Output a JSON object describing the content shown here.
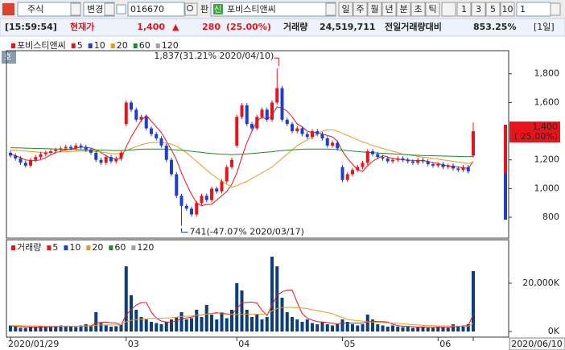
{
  "toolbar": {
    "market": "주식",
    "change": "변경",
    "code": "016670",
    "pan": "판",
    "badge": "신",
    "name": "포비스티앤씨",
    "periods": [
      "일",
      "주",
      "월",
      "년",
      "분",
      "초",
      "틱"
    ],
    "numbers": [
      "1",
      "3",
      "5",
      "10"
    ],
    "count": "1"
  },
  "quote": {
    "time": "[15:59:54]",
    "label": "현재가",
    "price": "1,400",
    "arrow": "▲",
    "change": "280",
    "rate": "(25.00%)",
    "volume_label": "거래량",
    "volume": "24,519,711",
    "ratio_label": "전일거래량대비",
    "ratio": "853.25%",
    "period": "[1일]"
  },
  "icon": "호",
  "chart_data": [
    {
      "type": "candlestick",
      "title": "포비스티앤씨",
      "up_color": "#e8141b",
      "down_color": "#1c3fd0",
      "categories": [
        "2020/01/29",
        null,
        null,
        null,
        null,
        null,
        null,
        null,
        null,
        null,
        null,
        null,
        null,
        null,
        null,
        null,
        null,
        null,
        null,
        null,
        null,
        null,
        null,
        "03",
        null,
        null,
        null,
        null,
        null,
        null,
        null,
        null,
        null,
        null,
        null,
        null,
        null,
        null,
        null,
        null,
        null,
        null,
        null,
        null,
        null,
        "04",
        null,
        null,
        null,
        null,
        null,
        null,
        null,
        null,
        null,
        null,
        null,
        null,
        null,
        null,
        null,
        null,
        null,
        null,
        null,
        null,
        "05",
        null,
        null,
        null,
        null,
        null,
        null,
        null,
        null,
        null,
        null,
        null,
        null,
        null,
        null,
        null,
        null,
        null,
        null,
        "06",
        null,
        null,
        null,
        null,
        null,
        null,
        "2020/06/10"
      ],
      "open": [
        1250,
        1230,
        1210,
        1180,
        1160,
        1200,
        1220,
        1240,
        1250,
        1260,
        1270,
        1280,
        1290,
        1280,
        1300,
        1290,
        1270,
        1250,
        1200,
        1180,
        1220,
        1190,
        1210,
        1450,
        1600,
        1550,
        1480,
        1500,
        1420,
        1380,
        1350,
        1300,
        1200,
        1100,
        950,
        880,
        860,
        820,
        900,
        950,
        920,
        1000,
        980,
        1050,
        1150,
        1300,
        1500,
        1580,
        1450,
        1420,
        1500,
        1550,
        1480,
        1600,
        1700,
        1480,
        1450,
        1400,
        1420,
        1380,
        1360,
        1400,
        1380,
        1350,
        1300,
        1320,
        1150,
        1060,
        1100,
        1130,
        1150,
        1180,
        1260,
        1240,
        1220,
        1210,
        1190,
        1200,
        1210,
        1200,
        1190,
        1180,
        1200,
        1190,
        1170,
        1160,
        1170,
        1150,
        1160,
        1140,
        1130,
        1150,
        1230
      ],
      "high": [
        1265,
        1245,
        1225,
        1195,
        1215,
        1235,
        1255,
        1265,
        1275,
        1285,
        1295,
        1305,
        1305,
        1315,
        1315,
        1305,
        1285,
        1265,
        1215,
        1235,
        1235,
        1225,
        1265,
        1615,
        1615,
        1565,
        1515,
        1515,
        1435,
        1395,
        1365,
        1315,
        1215,
        1115,
        965,
        895,
        875,
        915,
        965,
        965,
        1015,
        1015,
        1065,
        1165,
        1215,
        1515,
        1595,
        1595,
        1465,
        1515,
        1565,
        1565,
        1615,
        1837,
        1715,
        1495,
        1465,
        1435,
        1435,
        1395,
        1415,
        1415,
        1395,
        1365,
        1335,
        1335,
        1165,
        1115,
        1145,
        1165,
        1195,
        1275,
        1275,
        1255,
        1235,
        1225,
        1215,
        1225,
        1225,
        1215,
        1205,
        1215,
        1215,
        1205,
        1185,
        1185,
        1185,
        1175,
        1175,
        1155,
        1165,
        1165,
        1460
      ],
      "low": [
        1215,
        1195,
        1165,
        1145,
        1145,
        1185,
        1205,
        1225,
        1235,
        1245,
        1255,
        1265,
        1265,
        1265,
        1275,
        1255,
        1235,
        1185,
        1165,
        1165,
        1175,
        1175,
        1195,
        1435,
        1535,
        1465,
        1465,
        1405,
        1365,
        1335,
        1285,
        1185,
        1085,
        935,
        741,
        845,
        805,
        805,
        885,
        905,
        905,
        965,
        965,
        1035,
        1135,
        1285,
        1485,
        1435,
        1405,
        1405,
        1485,
        1465,
        1465,
        1585,
        1465,
        1435,
        1385,
        1385,
        1365,
        1345,
        1345,
        1365,
        1335,
        1285,
        1285,
        1265,
        1045,
        1045,
        1085,
        1115,
        1135,
        1165,
        1225,
        1205,
        1195,
        1175,
        1175,
        1185,
        1185,
        1175,
        1165,
        1165,
        1175,
        1155,
        1145,
        1145,
        1135,
        1135,
        1125,
        1115,
        1115,
        1105,
        1215
      ],
      "close": [
        1230,
        1210,
        1180,
        1160,
        1200,
        1220,
        1240,
        1250,
        1260,
        1270,
        1280,
        1290,
        1280,
        1300,
        1290,
        1270,
        1250,
        1200,
        1180,
        1220,
        1190,
        1210,
        1250,
        1600,
        1550,
        1480,
        1500,
        1420,
        1380,
        1350,
        1300,
        1200,
        1100,
        950,
        880,
        860,
        820,
        900,
        950,
        920,
        1000,
        980,
        1050,
        1150,
        1200,
        1500,
        1580,
        1450,
        1420,
        1500,
        1550,
        1480,
        1600,
        1700,
        1480,
        1450,
        1400,
        1420,
        1380,
        1360,
        1400,
        1380,
        1350,
        1300,
        1320,
        1280,
        1060,
        1100,
        1130,
        1150,
        1180,
        1260,
        1240,
        1220,
        1210,
        1190,
        1200,
        1210,
        1200,
        1190,
        1180,
        1200,
        1190,
        1170,
        1160,
        1170,
        1150,
        1160,
        1140,
        1130,
        1150,
        1120,
        1400
      ],
      "ma": [
        {
          "color": "#e8141b",
          "values": [
            1240,
            1230,
            1215,
            1200,
            1195,
            1195,
            1200,
            1215,
            1235,
            1250,
            1260,
            1270,
            1275,
            1282,
            1288,
            1288,
            1282,
            1270,
            1250,
            1230,
            1210,
            1205,
            1210,
            1290,
            1360,
            1420,
            1475,
            1510,
            1470,
            1430,
            1390,
            1330,
            1270,
            1200,
            1110,
            1030,
            960,
            900,
            880,
            890,
            890,
            920,
            950,
            980,
            1030,
            1110,
            1220,
            1320,
            1400,
            1470,
            1500,
            1480,
            1510,
            1570,
            1560,
            1540,
            1500,
            1450,
            1430,
            1400,
            1390,
            1390,
            1380,
            1370,
            1360,
            1330,
            1260,
            1210,
            1170,
            1130,
            1120,
            1160,
            1190,
            1210,
            1230,
            1220,
            1210,
            1205,
            1200,
            1200,
            1195,
            1195,
            1195,
            1190,
            1180,
            1175,
            1165,
            1160,
            1155,
            1150,
            1145,
            1140,
            1190
          ]
        },
        {
          "color": "#e89a1e",
          "values": [
            1270,
            1268,
            1265,
            1262,
            1258,
            1255,
            1253,
            1252,
            1252,
            1253,
            1255,
            1257,
            1258,
            1260,
            1262,
            1262,
            1260,
            1258,
            1255,
            1250,
            1245,
            1243,
            1245,
            1265,
            1280,
            1292,
            1305,
            1315,
            1320,
            1322,
            1322,
            1318,
            1310,
            1295,
            1275,
            1250,
            1220,
            1190,
            1160,
            1130,
            1100,
            1075,
            1050,
            1030,
            1010,
            1020,
            1035,
            1050,
            1070,
            1090,
            1110,
            1130,
            1150,
            1180,
            1210,
            1240,
            1270,
            1300,
            1320,
            1340,
            1360,
            1380,
            1400,
            1410,
            1410,
            1400,
            1385,
            1370,
            1355,
            1340,
            1325,
            1315,
            1300,
            1290,
            1280,
            1270,
            1260,
            1250,
            1240,
            1235,
            1230,
            1225,
            1220,
            1215,
            1210,
            1205,
            1200,
            1195,
            1190,
            1185,
            1180,
            1175,
            1185
          ]
        },
        {
          "color": "#1e8a2e",
          "values": [
            1285,
            1284,
            1283,
            1282,
            1281,
            1280,
            1279,
            1278,
            1277,
            1276,
            1275,
            1274,
            1273,
            1272,
            1271,
            1270,
            1270,
            1269,
            1268,
            1267,
            1266,
            1265,
            1265,
            1268,
            1270,
            1272,
            1274,
            1275,
            1276,
            1276,
            1275,
            1274,
            1272,
            1270,
            1267,
            1264,
            1260,
            1256,
            1252,
            1248,
            1245,
            1242,
            1240,
            1238,
            1237,
            1238,
            1240,
            1242,
            1245,
            1248,
            1251,
            1254,
            1257,
            1261,
            1265,
            1268,
            1270,
            1272,
            1274,
            1275,
            1276,
            1276,
            1276,
            1275,
            1274,
            1272,
            1268,
            1265,
            1262,
            1258,
            1255,
            1252,
            1250,
            1248,
            1246,
            1244,
            1242,
            1240,
            1238,
            1236,
            1234,
            1232,
            1231,
            1230,
            1229,
            1228,
            1227,
            1226,
            1225,
            1224,
            1223,
            1222,
            1226
          ]
        }
      ],
      "legend": [
        {
          "label": "5",
          "color": "#e8141b"
        },
        {
          "label": "10",
          "color": "#1c3fd0"
        },
        {
          "label": "20",
          "color": "#e89a1e"
        },
        {
          "label": "60",
          "color": "#1e8a2e"
        },
        {
          "label": "120",
          "color": "#a0a0a0"
        }
      ],
      "high_label": "1,837(31.21% 2020/04/10)",
      "low_label": "741(-47.07% 2020/03/17)",
      "price_box": [
        "1,400",
        "( 25.00%)"
      ],
      "ylim": [
        660,
        1950
      ],
      "yticks": [
        800,
        {
          "value": 1000,
          "label": "1,000"
        },
        {
          "value": 1200,
          "label": "1,200"
        },
        {
          "value": 1600,
          "label": "1,600"
        },
        {
          "value": 1800,
          "label": "1,800"
        }
      ]
    },
    {
      "type": "bar",
      "title": "거래량",
      "color": "#0b3f7c",
      "values": [
        2500,
        2000,
        1500,
        1500,
        1800,
        2000,
        2200,
        2000,
        1800,
        2000,
        2500,
        2200,
        2000,
        1800,
        2500,
        3000,
        2200,
        8000,
        3500,
        2500,
        2000,
        2200,
        3000,
        27000,
        15000,
        9000,
        6000,
        5000,
        4000,
        3500,
        3000,
        4000,
        5000,
        6000,
        8000,
        5000,
        5500,
        9000,
        6000,
        11000,
        7000,
        5000,
        8000,
        5500,
        9000,
        20000,
        17000,
        9000,
        6000,
        7000,
        5000,
        6000,
        31000,
        27000,
        14000,
        8000,
        6000,
        5000,
        4000,
        5000,
        3500,
        3000,
        4000,
        3000,
        2500,
        3000,
        5000,
        4000,
        3000,
        2500,
        3000,
        7000,
        5000,
        3000,
        2500,
        2000,
        2500,
        2000,
        1800,
        2000,
        1500,
        1800,
        2000,
        1500,
        1500,
        2000,
        1800,
        1500,
        3000,
        2000,
        2500,
        3000,
        25000
      ],
      "ma": [
        {
          "color": "#e8141b",
          "values": [
            2200,
            2100,
            2000,
            1900,
            1850,
            1800,
            1850,
            1900,
            2000,
            2000,
            2100,
            2100,
            2100,
            2100,
            2200,
            2300,
            2400,
            3500,
            3800,
            3900,
            3600,
            3600,
            2600,
            7000,
            9000,
            11000,
            12000,
            12000,
            8000,
            5500,
            4300,
            3900,
            3900,
            4400,
            5200,
            5600,
            5900,
            6700,
            6800,
            7300,
            7500,
            7800,
            7400,
            7300,
            6900,
            9500,
            11900,
            12100,
            12200,
            11800,
            8800,
            6600,
            11000,
            15000,
            16400,
            17200,
            17200,
            12000,
            7400,
            5600,
            4700,
            4100,
            3900,
            3700,
            3400,
            3200,
            3500,
            3500,
            3500,
            3500,
            3500,
            3900,
            4300,
            4100,
            4100,
            3900,
            3000,
            2400,
            2200,
            2100,
            2000,
            1800,
            1800,
            1700,
            1700,
            1800,
            1800,
            1700,
            2000,
            2100,
            2300,
            2500,
            7100
          ]
        },
        {
          "color": "#e89a1e",
          "values": [
            2400,
            2400,
            2400,
            2300,
            2300,
            2300,
            2300,
            2200,
            2200,
            2200,
            2200,
            2200,
            2200,
            2200,
            2200,
            2300,
            2300,
            2600,
            2700,
            2700,
            2700,
            2700,
            2800,
            4000,
            4600,
            4900,
            5100,
            5300,
            5400,
            5500,
            5500,
            5600,
            5700,
            5900,
            6200,
            6300,
            6400,
            6700,
            6800,
            7200,
            7400,
            7500,
            7800,
            7400,
            7100,
            7000,
            7100,
            7200,
            7200,
            7200,
            7200,
            7200,
            8500,
            9500,
            9900,
            10000,
            10000,
            9800,
            9700,
            9500,
            9000,
            8700,
            8200,
            7800,
            7400,
            6500,
            5800,
            5000,
            4700,
            4500,
            4300,
            4000,
            3900,
            3800,
            3700,
            3600,
            3500,
            3400,
            3200,
            3000,
            2800,
            2700,
            2500,
            2400,
            2400,
            2300,
            2300,
            2300,
            2300,
            2200,
            2200,
            2200,
            3300
          ]
        }
      ],
      "legend": [
        {
          "label": "5",
          "color": "#e8141b"
        },
        {
          "label": "10",
          "color": "#1c3fd0"
        },
        {
          "label": "20",
          "color": "#e89a1e"
        },
        {
          "label": "60",
          "color": "#1e8a2e"
        },
        {
          "label": "120",
          "color": "#a0a0a0"
        }
      ],
      "ylim": [
        -2000,
        38000
      ],
      "yticks": [
        {
          "value": 0,
          "label": "0K"
        },
        {
          "value": 20000,
          "label": "20,000K"
        }
      ]
    }
  ]
}
